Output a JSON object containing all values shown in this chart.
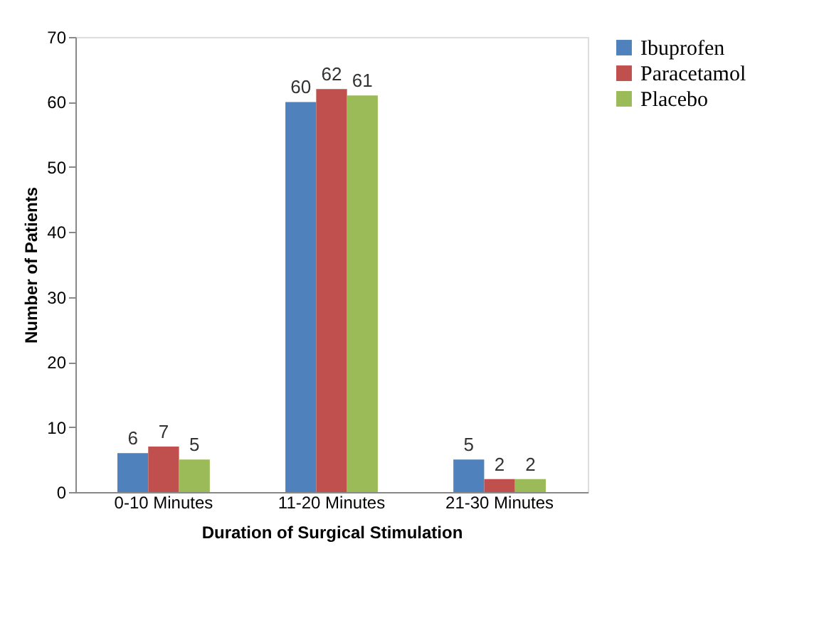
{
  "chart_data": {
    "type": "bar",
    "xlabel": "Duration of Surgical Stimulation",
    "ylabel": "Number of Patients",
    "categories": [
      "0-10 Minutes",
      "11-20 Minutes",
      "21-30 Minutes"
    ],
    "series": [
      {
        "name": "Ibuprofen",
        "color": "#4f81bd",
        "values": [
          6,
          60,
          5
        ]
      },
      {
        "name": "Paracetamol",
        "color": "#c0504d",
        "values": [
          7,
          62,
          2
        ]
      },
      {
        "name": "Placebo",
        "color": "#9bbb59",
        "values": [
          5,
          61,
          2
        ]
      }
    ],
    "ylim": [
      0,
      70
    ],
    "yticks": [
      0,
      10,
      20,
      30,
      40,
      50,
      60,
      70
    ],
    "grid": false,
    "legend": "right",
    "data_labels": true
  }
}
